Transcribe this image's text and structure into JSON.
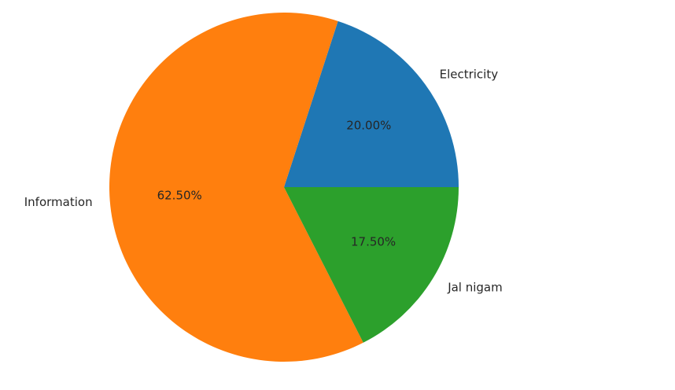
{
  "chart_data": {
    "type": "pie",
    "start_angle_deg": 0,
    "direction": "counterclockwise",
    "slices": [
      {
        "label": "Electricity",
        "value": 20.0,
        "pct_label": "20.00%",
        "color": "#1f77b4"
      },
      {
        "label": "Information",
        "value": 62.5,
        "pct_label": "62.50%",
        "color": "#ff7f0e"
      },
      {
        "label": "Jal nigam",
        "value": 17.5,
        "pct_label": "17.50%",
        "color": "#2ca02c"
      }
    ]
  }
}
